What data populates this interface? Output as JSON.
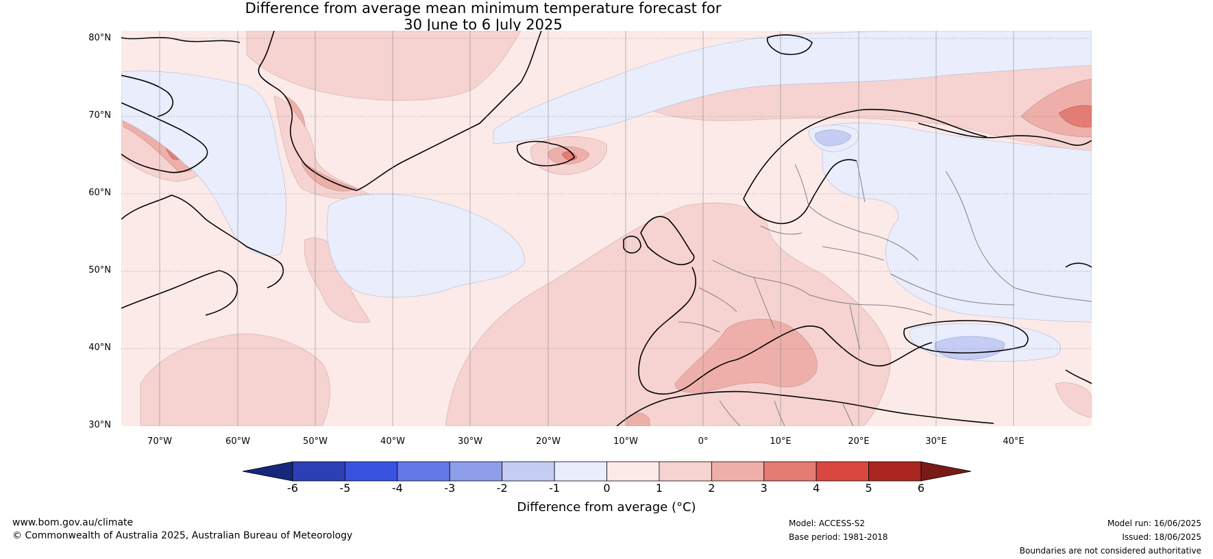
{
  "title": {
    "line1": "Difference from average mean minimum temperature forecast for",
    "line2": "30 June to 6 July 2025"
  },
  "map": {
    "lat_ticks": [
      "80°N",
      "70°N",
      "60°N",
      "50°N",
      "40°N",
      "30°N"
    ],
    "lon_ticks": [
      "70°W",
      "60°W",
      "50°W",
      "40°W",
      "30°W",
      "20°W",
      "10°W",
      "0°",
      "10°E",
      "20°E",
      "30°E",
      "40°E"
    ],
    "extent": {
      "lon": [
        -75,
        50
      ],
      "lat": [
        30,
        81
      ]
    }
  },
  "colorbar": {
    "ticks": [
      "-6",
      "-5",
      "-4",
      "-3",
      "-2",
      "-1",
      "0",
      "1",
      "2",
      "3",
      "4",
      "5",
      "6"
    ],
    "label": "Difference from average (°C)",
    "colors": [
      "#16287a",
      "#2c3fb4",
      "#3a52e0",
      "#6478e8",
      "#8e9ee9",
      "#c5cdf5",
      "#e9edfc",
      "#fceae8",
      "#f6d3d0",
      "#eeafaa",
      "#e47c74",
      "#d84840",
      "#ab2620",
      "#7a1a16"
    ]
  },
  "footer": {
    "website": "www.bom.gov.au/climate",
    "copyright": "© Commonwealth of Australia 2025, Australian Bureau of Meteorology",
    "model": "Model: ACCESS-S2",
    "base_period": "Base period: 1981-2018",
    "model_run": "Model run: 16/06/2025",
    "issued": "Issued: 18/06/2025",
    "disclaimer": "Boundaries are not considered authoritative"
  }
}
